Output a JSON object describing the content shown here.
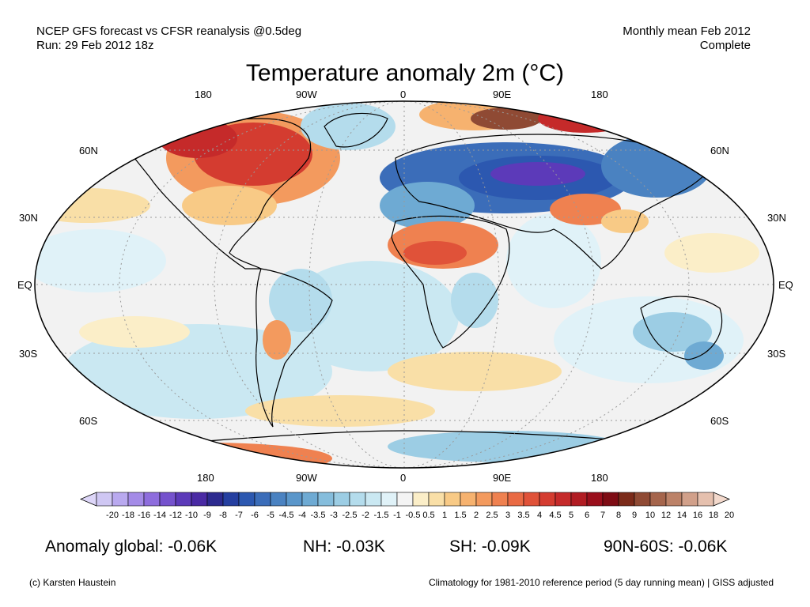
{
  "header": {
    "left_line1": "NCEP GFS forecast vs CFSR reanalysis @0.5deg",
    "left_line2": "Run: 29 Feb 2012 18z",
    "right_line1": "Monthly mean Feb 2012",
    "right_line2": "Complete"
  },
  "title": "Temperature anomaly 2m (°C)",
  "longitude_labels": [
    "180",
    "90W",
    "0",
    "90E",
    "180"
  ],
  "latitude_labels": [
    "60N",
    "30N",
    "EQ",
    "30S",
    "60S"
  ],
  "colorbar": {
    "ticks": [
      "-20",
      "-18",
      "-16",
      "-14",
      "-12",
      "-10",
      "-9",
      "-8",
      "-7",
      "-6",
      "-5",
      "-4.5",
      "-4",
      "-3.5",
      "-3",
      "-2.5",
      "-2",
      "-1.5",
      "-1",
      "-0.5",
      "0.5",
      "1",
      "1.5",
      "2",
      "2.5",
      "3",
      "3.5",
      "4",
      "4.5",
      "5",
      "6",
      "7",
      "8",
      "9",
      "10",
      "12",
      "14",
      "16",
      "18",
      "20"
    ],
    "colors": [
      "#cfc7f3",
      "#b9a9ef",
      "#a48be7",
      "#8e6ddd",
      "#7552cd",
      "#5c3ab9",
      "#4a2aa4",
      "#2d2a8f",
      "#253fa0",
      "#2c58b0",
      "#3b6db9",
      "#4a82c1",
      "#5a96ca",
      "#6eaad3",
      "#85bddc",
      "#9ccde4",
      "#b4dcec",
      "#cae8f2",
      "#e0f2f8",
      "#f4f4f4",
      "#fbeec8",
      "#f9dfa7",
      "#f8ca86",
      "#f6b26f",
      "#f39a5e",
      "#ef8150",
      "#e96a44",
      "#e05239",
      "#d43c30",
      "#c52a2a",
      "#b11c23",
      "#9a0f1c",
      "#7e0c14",
      "#7b2b1a",
      "#8f4a34",
      "#a5654c",
      "#bc8268",
      "#d1a08a",
      "#e5c0ae"
    ],
    "neg_end_color": "#ddd6f8",
    "pos_end_color": "#f3d9cc"
  },
  "stats": {
    "global": "Anomaly global: -0.06K",
    "nh": "NH: -0.03K",
    "sh": "SH: -0.09K",
    "polar": "90N-60S: -0.06K"
  },
  "footer": {
    "credit": "(c) Karsten Haustein",
    "note": "Climatology for 1981-2010 reference period (5 day running mean) | GISS adjusted"
  }
}
